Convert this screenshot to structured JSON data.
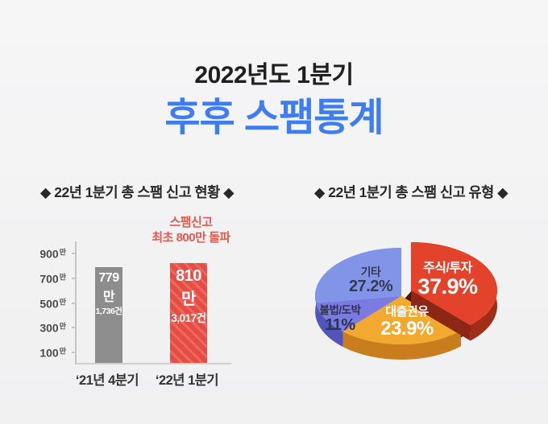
{
  "header": {
    "subtitle": "2022년도 1분기",
    "title": "후후 스팸통계",
    "title_color": "#3c7ef2"
  },
  "chart_data": [
    {
      "type": "bar",
      "title": "◆ 22년 1분기 총 스팸 신고 현황 ◆",
      "annotation_lines": [
        "스팸신고",
        "최초 800만 돌파"
      ],
      "annotation_color": "#e8574c",
      "categories": [
        "‘21년 4분기",
        "‘22년 1분기"
      ],
      "values_man": [
        779.1736,
        810.3017
      ],
      "values_cases": [
        7791736,
        8103017
      ],
      "bar_labels": [
        {
          "main": "779만",
          "sub": "1,736건"
        },
        {
          "main": "810만",
          "sub": "3,017건"
        }
      ],
      "bar_colors": [
        "#8d8d8d",
        "#e74c42"
      ],
      "ylim": [
        0,
        1000
      ],
      "y_ticks": [
        {
          "value": 900,
          "label": "900",
          "unit": "만"
        },
        {
          "value": 700,
          "label": "700",
          "unit": "만"
        },
        {
          "value": 500,
          "label": "500",
          "unit": "만"
        },
        {
          "value": 300,
          "label": "300",
          "unit": "만"
        },
        {
          "value": 100,
          "label": "100",
          "unit": "만"
        }
      ],
      "grid": false
    },
    {
      "type": "pie",
      "title": "◆ 22년 1분기 총 스팸 신고 유형 ◆",
      "style": "3d-exploded",
      "slices": [
        {
          "label": "주식/투자",
          "pct": 37.9,
          "pct_label": "37.9%",
          "color": "#e2432a",
          "rim": "#a22d17",
          "explode": true,
          "text_color": "#ffffff"
        },
        {
          "label": "대출권유",
          "pct": 23.9,
          "pct_label": "23.9%",
          "color": "#f3a82f",
          "rim": "#c97d1c",
          "explode": false,
          "text_color": "#ffffff"
        },
        {
          "label": "불법/도박",
          "pct": 11.0,
          "pct_label": "11%",
          "color": "#7b7ce2",
          "rim": "#5154ba",
          "explode": false,
          "text_color": "#2e3350"
        },
        {
          "label": "기타",
          "pct": 27.2,
          "pct_label": "27.2%",
          "color": "#8294e8",
          "rim": "#5e6ed0",
          "explode": false,
          "text_color": "#363b54"
        }
      ]
    }
  ]
}
